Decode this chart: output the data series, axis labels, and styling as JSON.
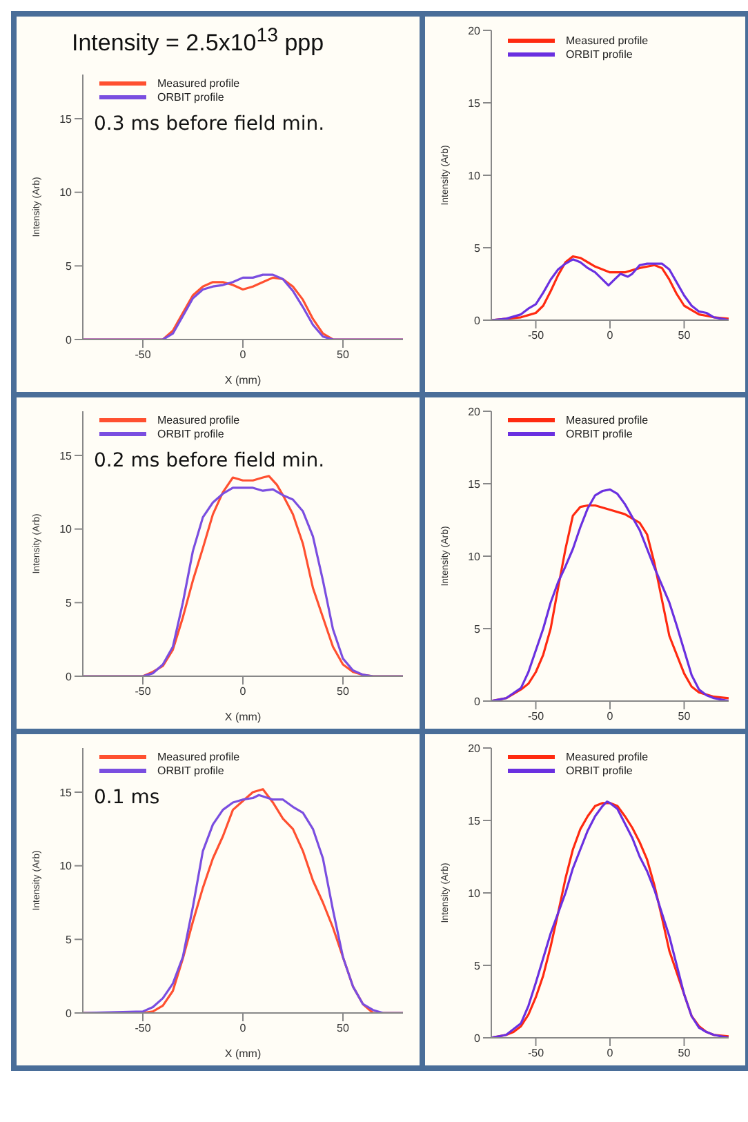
{
  "chart_data": [
    {
      "type": "line",
      "title": "Intensity = 2.5x10$^{13}$ ppp",
      "xlabel": "X (mm)",
      "ylabel": "Intensity (Arb)",
      "xlim": [
        -80,
        80
      ],
      "xticks": [
        -50,
        0,
        50
      ],
      "ylim": [
        0,
        18
      ],
      "yticks": [
        0,
        5,
        10,
        15
      ],
      "legend": "top left",
      "annotations": [
        "0.3 ms before field min."
      ],
      "series": [
        {
          "name": "Measured profile",
          "color": "#ff5030",
          "x": [
            -80,
            -45,
            -40,
            -35,
            -30,
            -25,
            -20,
            -15,
            -10,
            -5,
            0,
            5,
            10,
            15,
            20,
            25,
            30,
            35,
            40,
            45,
            80
          ],
          "values": [
            0,
            0,
            0,
            0.6,
            1.8,
            3.0,
            3.6,
            3.9,
            3.9,
            3.7,
            3.4,
            3.6,
            3.9,
            4.2,
            4.1,
            3.6,
            2.7,
            1.4,
            0.4,
            0,
            0
          ]
        },
        {
          "name": "ORBIT profile",
          "color": "#7a4ee0",
          "x": [
            -80,
            -40,
            -35,
            -30,
            -25,
            -20,
            -15,
            -10,
            -5,
            0,
            5,
            10,
            15,
            20,
            25,
            30,
            35,
            40,
            45,
            80
          ],
          "values": [
            0,
            0,
            0.4,
            1.6,
            2.8,
            3.4,
            3.6,
            3.7,
            3.9,
            4.2,
            4.2,
            4.4,
            4.4,
            4.1,
            3.3,
            2.2,
            1.0,
            0.2,
            0,
            0
          ]
        }
      ]
    },
    {
      "type": "line",
      "ylabel": "Intensity (Arb)",
      "xlim": [
        -80,
        80
      ],
      "xticks": [
        -50,
        0,
        50
      ],
      "ylim": [
        0,
        20
      ],
      "yticks": [
        0,
        5,
        10,
        15,
        20
      ],
      "legend": "top left",
      "series": [
        {
          "name": "Measured profile",
          "color": "#ff2a10",
          "x": [
            -80,
            -70,
            -60,
            -50,
            -45,
            -40,
            -35,
            -30,
            -25,
            -20,
            -15,
            -10,
            -5,
            0,
            10,
            20,
            30,
            35,
            40,
            45,
            50,
            55,
            60,
            70,
            80
          ],
          "values": [
            0,
            0.1,
            0.2,
            0.5,
            1.0,
            2.0,
            3.1,
            4.0,
            4.4,
            4.3,
            4.0,
            3.7,
            3.5,
            3.3,
            3.3,
            3.6,
            3.8,
            3.6,
            2.8,
            1.8,
            1.0,
            0.7,
            0.4,
            0.2,
            0.1
          ]
        },
        {
          "name": "ORBIT profile",
          "color": "#6a30e0",
          "x": [
            -80,
            -70,
            -60,
            -55,
            -50,
            -45,
            -40,
            -35,
            -30,
            -25,
            -20,
            -15,
            -10,
            -5,
            -1,
            3,
            7,
            12,
            15,
            20,
            25,
            35,
            40,
            45,
            50,
            55,
            60,
            65,
            70,
            75,
            80
          ],
          "values": [
            0,
            0.1,
            0.4,
            0.8,
            1.1,
            1.9,
            2.8,
            3.5,
            3.9,
            4.2,
            4.0,
            3.6,
            3.3,
            2.8,
            2.4,
            2.8,
            3.2,
            3.0,
            3.2,
            3.8,
            3.9,
            3.9,
            3.5,
            2.6,
            1.7,
            1.0,
            0.6,
            0.5,
            0.2,
            0.1,
            0
          ]
        }
      ]
    },
    {
      "type": "line",
      "xlabel": "X (mm)",
      "ylabel": "Intensity (Arb)",
      "xlim": [
        -80,
        80
      ],
      "xticks": [
        -50,
        0,
        50
      ],
      "ylim": [
        0,
        18
      ],
      "yticks": [
        0,
        5,
        10,
        15
      ],
      "legend": "top left",
      "annotations": [
        "0.2 ms before field min."
      ],
      "series": [
        {
          "name": "Measured profile",
          "color": "#ff5030",
          "x": [
            -80,
            -50,
            -45,
            -40,
            -35,
            -30,
            -25,
            -20,
            -15,
            -10,
            -5,
            0,
            5,
            10,
            13,
            17,
            20,
            25,
            30,
            35,
            40,
            45,
            50,
            55,
            60,
            65,
            80
          ],
          "values": [
            0,
            0,
            0.3,
            0.7,
            1.8,
            4.0,
            6.5,
            8.7,
            11.0,
            12.5,
            13.5,
            13.3,
            13.3,
            13.5,
            13.6,
            13.0,
            12.3,
            11.0,
            9.0,
            6.0,
            4.0,
            2.0,
            0.8,
            0.3,
            0.1,
            0,
            0
          ]
        },
        {
          "name": "ORBIT profile",
          "color": "#7a4ee0",
          "x": [
            -80,
            -50,
            -45,
            -40,
            -35,
            -30,
            -25,
            -20,
            -15,
            -10,
            -5,
            0,
            5,
            10,
            15,
            20,
            25,
            30,
            35,
            40,
            45,
            50,
            55,
            60,
            65,
            80
          ],
          "values": [
            0,
            0,
            0.2,
            0.8,
            2.0,
            5.0,
            8.5,
            10.8,
            11.8,
            12.4,
            12.8,
            12.8,
            12.8,
            12.6,
            12.7,
            12.3,
            12.0,
            11.2,
            9.5,
            6.5,
            3.2,
            1.2,
            0.4,
            0.1,
            0,
            0
          ]
        }
      ]
    },
    {
      "type": "line",
      "ylabel": "Intensity (Arb)",
      "xlim": [
        -80,
        80
      ],
      "xticks": [
        -50,
        0,
        50
      ],
      "ylim": [
        0,
        20
      ],
      "yticks": [
        0,
        5,
        10,
        15,
        20
      ],
      "legend": "top left",
      "series": [
        {
          "name": "Measured profile",
          "color": "#ff2a10",
          "x": [
            -80,
            -70,
            -60,
            -55,
            -50,
            -45,
            -40,
            -35,
            -30,
            -25,
            -20,
            -15,
            -10,
            0,
            10,
            20,
            25,
            30,
            35,
            40,
            45,
            50,
            55,
            60,
            70,
            80
          ],
          "values": [
            0,
            0.2,
            0.8,
            1.2,
            2.0,
            3.2,
            5.0,
            7.8,
            10.5,
            12.8,
            13.4,
            13.5,
            13.5,
            13.2,
            12.9,
            12.3,
            11.5,
            9.5,
            7.0,
            4.5,
            3.2,
            1.9,
            1.0,
            0.6,
            0.3,
            0.2
          ]
        },
        {
          "name": "ORBIT profile",
          "color": "#6a30e0",
          "x": [
            -80,
            -70,
            -60,
            -55,
            -50,
            -45,
            -40,
            -35,
            -30,
            -25,
            -20,
            -15,
            -10,
            -5,
            0,
            5,
            10,
            15,
            20,
            25,
            30,
            35,
            40,
            45,
            50,
            55,
            60,
            65,
            70,
            80
          ],
          "values": [
            0,
            0.2,
            0.9,
            2.0,
            3.5,
            5.0,
            6.8,
            8.2,
            9.3,
            10.5,
            12.0,
            13.3,
            14.2,
            14.5,
            14.6,
            14.3,
            13.6,
            12.7,
            11.8,
            10.5,
            9.2,
            8.0,
            6.8,
            5.2,
            3.5,
            1.8,
            0.8,
            0.4,
            0.2,
            0
          ]
        }
      ]
    },
    {
      "type": "line",
      "xlabel": "X (mm)",
      "ylabel": "Intensity (Arb)",
      "xlim": [
        -80,
        80
      ],
      "xticks": [
        -50,
        0,
        50
      ],
      "ylim": [
        0,
        18
      ],
      "yticks": [
        0,
        5,
        10,
        15
      ],
      "legend": "top left",
      "annotations": [
        "0.1 ms"
      ],
      "series": [
        {
          "name": "Measured profile",
          "color": "#ff5030",
          "x": [
            -80,
            -50,
            -45,
            -40,
            -35,
            -30,
            -25,
            -20,
            -15,
            -10,
            -5,
            0,
            5,
            10,
            15,
            20,
            25,
            30,
            35,
            40,
            45,
            50,
            55,
            60,
            65,
            80
          ],
          "values": [
            0,
            0,
            0.1,
            0.5,
            1.5,
            3.7,
            6.2,
            8.5,
            10.5,
            12.0,
            13.8,
            14.4,
            15.0,
            15.2,
            14.3,
            13.2,
            12.5,
            11.0,
            9.0,
            7.5,
            5.8,
            3.8,
            1.8,
            0.6,
            0,
            0
          ]
        },
        {
          "name": "ORBIT profile",
          "color": "#7a4ee0",
          "x": [
            -80,
            -50,
            -45,
            -40,
            -35,
            -30,
            -25,
            -20,
            -15,
            -10,
            -5,
            0,
            5,
            8,
            15,
            20,
            25,
            30,
            35,
            40,
            45,
            50,
            55,
            60,
            65,
            70,
            80
          ],
          "values": [
            0,
            0.1,
            0.4,
            1.0,
            2.0,
            3.8,
            7.2,
            11.0,
            12.8,
            13.8,
            14.3,
            14.5,
            14.6,
            14.8,
            14.5,
            14.5,
            14.0,
            13.6,
            12.5,
            10.5,
            7.0,
            3.8,
            1.8,
            0.6,
            0.2,
            0,
            0
          ]
        }
      ]
    },
    {
      "type": "line",
      "ylabel": "Intensity (Arb)",
      "xlim": [
        -80,
        80
      ],
      "xticks": [
        -50,
        0,
        50
      ],
      "ylim": [
        0,
        20
      ],
      "yticks": [
        0,
        5,
        10,
        15,
        20
      ],
      "legend": "top left",
      "series": [
        {
          "name": "Measured profile",
          "color": "#ff2a10",
          "x": [
            -80,
            -70,
            -65,
            -60,
            -55,
            -50,
            -45,
            -40,
            -35,
            -30,
            -25,
            -20,
            -15,
            -10,
            -5,
            0,
            5,
            10,
            15,
            20,
            25,
            30,
            35,
            40,
            45,
            50,
            55,
            60,
            65,
            70,
            80
          ],
          "values": [
            0,
            0.2,
            0.4,
            0.8,
            1.6,
            2.8,
            4.3,
            6.3,
            8.6,
            11.0,
            13.0,
            14.4,
            15.3,
            16.0,
            16.2,
            16.2,
            16.0,
            15.3,
            14.5,
            13.5,
            12.3,
            10.5,
            8.3,
            6.0,
            4.5,
            3.0,
            1.5,
            0.8,
            0.4,
            0.2,
            0.1
          ]
        },
        {
          "name": "ORBIT profile",
          "color": "#6a30e0",
          "x": [
            -80,
            -70,
            -60,
            -55,
            -50,
            -45,
            -40,
            -35,
            -30,
            -25,
            -20,
            -15,
            -10,
            -5,
            -2,
            0,
            5,
            10,
            15,
            20,
            25,
            30,
            35,
            40,
            45,
            50,
            55,
            60,
            65,
            70,
            80
          ],
          "values": [
            0,
            0.2,
            1.0,
            2.2,
            3.8,
            5.5,
            7.2,
            8.6,
            10.0,
            11.7,
            13.0,
            14.3,
            15.3,
            16.0,
            16.3,
            16.2,
            15.8,
            14.8,
            13.8,
            12.5,
            11.5,
            10.2,
            8.6,
            7.0,
            5.0,
            3.0,
            1.5,
            0.7,
            0.4,
            0.2,
            0
          ]
        }
      ]
    }
  ]
}
